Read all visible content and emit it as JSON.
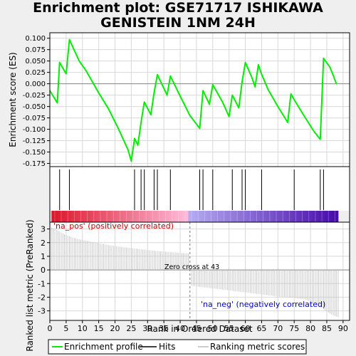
{
  "title": [
    "Enrichment plot: GSE71717 ISHIKAWA",
    "GENISTEIN 1NM 24H"
  ],
  "chart_data": {
    "type": "line",
    "top_panel": {
      "ylabel": "Enrichment score (ES)",
      "yticks": [
        0.1,
        0.075,
        0.05,
        0.025,
        0.0,
        -0.025,
        -0.05,
        -0.075,
        -0.1,
        -0.125,
        -0.15,
        -0.175
      ],
      "ytick_labels": [
        "0.100",
        "0.075",
        "0.050",
        "0.025",
        "0.000",
        "-0.025",
        "-0.050",
        "-0.075",
        "-0.100",
        "-0.125",
        "-0.150",
        "-0.175"
      ],
      "ylim": [
        -0.182,
        0.112
      ],
      "series": [
        {
          "name": "Enrichment profile",
          "color": "#00ee00",
          "x": [
            0,
            2.3,
            3,
            5,
            6,
            9,
            11,
            13,
            15,
            18,
            21,
            24,
            25,
            26,
            27,
            28,
            29,
            31,
            32,
            33,
            36,
            37,
            40,
            43,
            46,
            47,
            49,
            50,
            53,
            55,
            56,
            58,
            59,
            60,
            62,
            63,
            64,
            65,
            67,
            70,
            73,
            74,
            75,
            78,
            81,
            83,
            84,
            86,
            87,
            88
          ],
          "y": [
            -0.015,
            -0.042,
            0.047,
            0.022,
            0.097,
            0.05,
            0.03,
            0.005,
            -0.02,
            -0.055,
            -0.098,
            -0.145,
            -0.17,
            -0.12,
            -0.135,
            -0.085,
            -0.04,
            -0.068,
            -0.02,
            0.02,
            -0.025,
            0.017,
            -0.027,
            -0.07,
            -0.098,
            -0.015,
            -0.045,
            -0.002,
            -0.04,
            -0.072,
            -0.025,
            -0.053,
            0.004,
            0.047,
            0.014,
            -0.007,
            0.042,
            0.021,
            -0.013,
            -0.05,
            -0.085,
            -0.022,
            -0.035,
            -0.07,
            -0.104,
            -0.122,
            0.056,
            0.036,
            0.018,
            -0.001
          ]
        }
      ]
    },
    "hits": [
      3,
      6,
      26,
      28,
      29,
      32,
      33,
      37,
      46,
      47,
      50,
      56,
      59,
      60,
      65,
      75,
      83,
      84
    ],
    "zero_cross_x": 43,
    "bottom_panel": {
      "ylabel": "Ranked list metric (PreRanked)",
      "xlabel": "Rank in Ordered Dataset",
      "yticks": [
        3,
        2,
        1,
        0,
        -1,
        -2,
        -3
      ],
      "ylim": [
        -3.7,
        3.5
      ],
      "metric_x": [
        0,
        1,
        2,
        3,
        5,
        8,
        12,
        16,
        20,
        25,
        30,
        35,
        40,
        42.9,
        43.1,
        46,
        50,
        55,
        60,
        65,
        70,
        75,
        79,
        81,
        83,
        85,
        87,
        89
      ],
      "metric_y": [
        3.2,
        3.05,
        2.95,
        2.8,
        2.55,
        2.3,
        2.1,
        1.9,
        1.75,
        1.6,
        1.45,
        1.35,
        1.25,
        1.2,
        -1.15,
        -1.25,
        -1.35,
        -1.5,
        -1.65,
        -1.8,
        -1.95,
        -2.05,
        -2.2,
        -2.45,
        -2.75,
        -3.05,
        -3.35,
        -3.5
      ],
      "annotations": {
        "pos": "'na_pos' (positively correlated)",
        "neg": "'na_neg' (negatively correlated)",
        "zero": "Zero cross at 43"
      }
    },
    "xlim": [
      0,
      92
    ],
    "xticks": [
      0,
      5,
      10,
      15,
      20,
      25,
      30,
      35,
      40,
      45,
      50,
      55,
      60,
      65,
      70,
      75,
      80,
      85,
      90
    ],
    "legend": {
      "position": "bottom",
      "items": [
        {
          "label": "Enrichment profile",
          "color": "#00ee00",
          "kind": "line"
        },
        {
          "label": "Hits",
          "color": "#000000",
          "kind": "line"
        },
        {
          "label": "Ranking metric scores",
          "color": "#bbbbbb",
          "kind": "line"
        }
      ]
    },
    "grid": true
  }
}
